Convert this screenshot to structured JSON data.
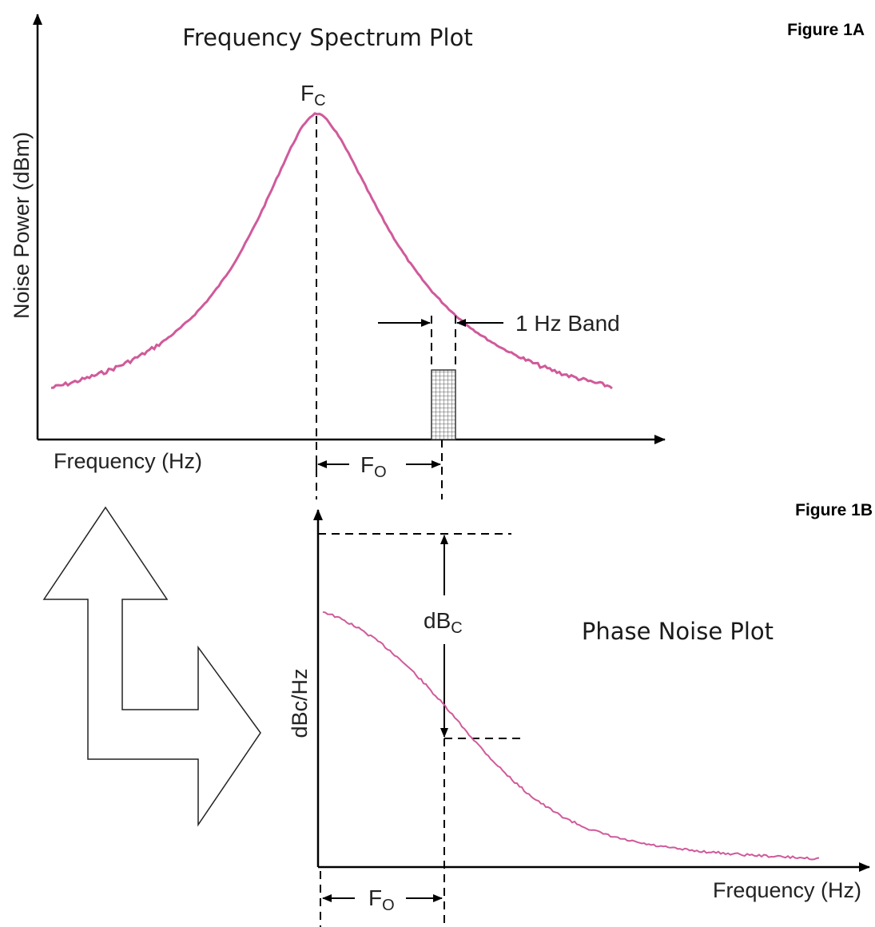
{
  "figure_a": {
    "label": "Figure 1A",
    "title": "Frequency Spectrum Plot",
    "y_axis_label": "Noise Power (dBm)",
    "x_axis_label": "Frequency (Hz)",
    "carrier_label_main": "F",
    "carrier_label_sub": "C",
    "band_label": "1 Hz Band",
    "offset_label_main": "F",
    "offset_label_sub": "O"
  },
  "figure_b": {
    "label": "Figure 1B",
    "title": "Phase Noise Plot",
    "y_axis_label": "dBc/Hz",
    "x_axis_label": "Frequency (Hz)",
    "dbc_label_main": "dB",
    "dbc_label_sub": "C",
    "offset_label_main": "F",
    "offset_label_sub": "O"
  },
  "colors": {
    "curve": "#d05a9a",
    "axis": "#000000",
    "band_fill": "#555555"
  },
  "icons": {
    "transform_arrow": "bent-up-right-arrow-icon"
  }
}
